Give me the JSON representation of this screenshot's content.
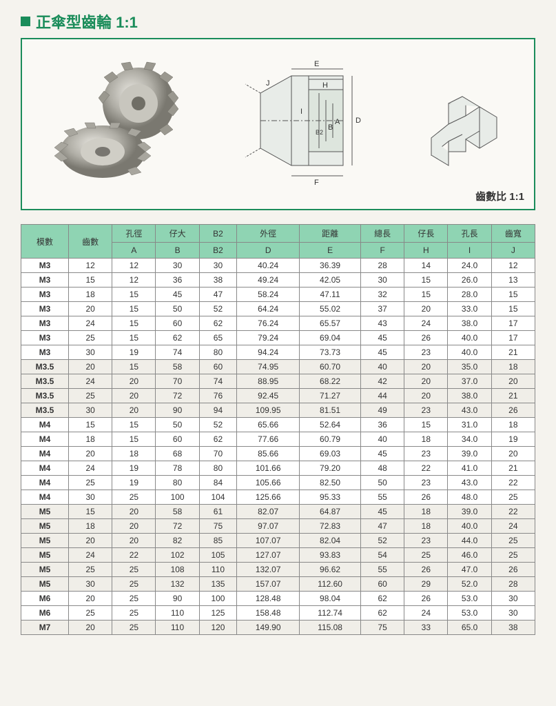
{
  "title": "正傘型齒輪  1:1",
  "ratio_label": "齒數比 1:1",
  "diagram_labels": [
    "E",
    "H",
    "J",
    "I",
    "A",
    "B",
    "B2",
    "D",
    "F"
  ],
  "colors": {
    "green": "#1a8c5a",
    "header_bg": "#8fd4b3",
    "border": "#888888",
    "bg": "#f5f3ee",
    "stripe": "#f0eee8"
  },
  "table": {
    "header_row1": [
      "模數",
      "齒數",
      "孔徑",
      "仔大",
      "B2",
      "外徑",
      "距離",
      "總長",
      "仔長",
      "孔長",
      "齒寬"
    ],
    "header_row2": [
      "",
      "",
      "A",
      "B",
      "B2",
      "D",
      "E",
      "F",
      "H",
      "I",
      "J"
    ],
    "groups": [
      {
        "stripe": false,
        "rows": [
          [
            "M3",
            "12",
            "12",
            "30",
            "30",
            "40.24",
            "36.39",
            "28",
            "14",
            "24.0",
            "12"
          ],
          [
            "M3",
            "15",
            "12",
            "36",
            "38",
            "49.24",
            "42.05",
            "30",
            "15",
            "26.0",
            "13"
          ],
          [
            "M3",
            "18",
            "15",
            "45",
            "47",
            "58.24",
            "47.11",
            "32",
            "15",
            "28.0",
            "15"
          ],
          [
            "M3",
            "20",
            "15",
            "50",
            "52",
            "64.24",
            "55.02",
            "37",
            "20",
            "33.0",
            "15"
          ],
          [
            "M3",
            "24",
            "15",
            "60",
            "62",
            "76.24",
            "65.57",
            "43",
            "24",
            "38.0",
            "17"
          ],
          [
            "M3",
            "25",
            "15",
            "62",
            "65",
            "79.24",
            "69.04",
            "45",
            "26",
            "40.0",
            "17"
          ],
          [
            "M3",
            "30",
            "19",
            "74",
            "80",
            "94.24",
            "73.73",
            "45",
            "23",
            "40.0",
            "21"
          ]
        ]
      },
      {
        "stripe": true,
        "rows": [
          [
            "M3.5",
            "20",
            "15",
            "58",
            "60",
            "74.95",
            "60.70",
            "40",
            "20",
            "35.0",
            "18"
          ],
          [
            "M3.5",
            "24",
            "20",
            "70",
            "74",
            "88.95",
            "68.22",
            "42",
            "20",
            "37.0",
            "20"
          ],
          [
            "M3.5",
            "25",
            "20",
            "72",
            "76",
            "92.45",
            "71.27",
            "44",
            "20",
            "38.0",
            "21"
          ],
          [
            "M3.5",
            "30",
            "20",
            "90",
            "94",
            "109.95",
            "81.51",
            "49",
            "23",
            "43.0",
            "26"
          ]
        ]
      },
      {
        "stripe": false,
        "rows": [
          [
            "M4",
            "15",
            "15",
            "50",
            "52",
            "65.66",
            "52.64",
            "36",
            "15",
            "31.0",
            "18"
          ],
          [
            "M4",
            "18",
            "15",
            "60",
            "62",
            "77.66",
            "60.79",
            "40",
            "18",
            "34.0",
            "19"
          ],
          [
            "M4",
            "20",
            "18",
            "68",
            "70",
            "85.66",
            "69.03",
            "45",
            "23",
            "39.0",
            "20"
          ],
          [
            "M4",
            "24",
            "19",
            "78",
            "80",
            "101.66",
            "79.20",
            "48",
            "22",
            "41.0",
            "21"
          ],
          [
            "M4",
            "25",
            "19",
            "80",
            "84",
            "105.66",
            "82.50",
            "50",
            "23",
            "43.0",
            "22"
          ],
          [
            "M4",
            "30",
            "25",
            "100",
            "104",
            "125.66",
            "95.33",
            "55",
            "26",
            "48.0",
            "25"
          ]
        ]
      },
      {
        "stripe": true,
        "rows": [
          [
            "M5",
            "15",
            "20",
            "58",
            "61",
            "82.07",
            "64.87",
            "45",
            "18",
            "39.0",
            "22"
          ],
          [
            "M5",
            "18",
            "20",
            "72",
            "75",
            "97.07",
            "72.83",
            "47",
            "18",
            "40.0",
            "24"
          ],
          [
            "M5",
            "20",
            "20",
            "82",
            "85",
            "107.07",
            "82.04",
            "52",
            "23",
            "44.0",
            "25"
          ],
          [
            "M5",
            "24",
            "22",
            "102",
            "105",
            "127.07",
            "93.83",
            "54",
            "25",
            "46.0",
            "25"
          ],
          [
            "M5",
            "25",
            "25",
            "108",
            "110",
            "132.07",
            "96.62",
            "55",
            "26",
            "47.0",
            "26"
          ],
          [
            "M5",
            "30",
            "25",
            "132",
            "135",
            "157.07",
            "112.60",
            "60",
            "29",
            "52.0",
            "28"
          ]
        ]
      },
      {
        "stripe": false,
        "rows": [
          [
            "M6",
            "20",
            "25",
            "90",
            "100",
            "128.48",
            "98.04",
            "62",
            "26",
            "53.0",
            "30"
          ],
          [
            "M6",
            "25",
            "25",
            "110",
            "125",
            "158.48",
            "112.74",
            "62",
            "24",
            "53.0",
            "30"
          ]
        ]
      },
      {
        "stripe": true,
        "rows": [
          [
            "M7",
            "20",
            "25",
            "110",
            "120",
            "149.90",
            "115.08",
            "75",
            "33",
            "65.0",
            "38"
          ]
        ]
      }
    ]
  }
}
